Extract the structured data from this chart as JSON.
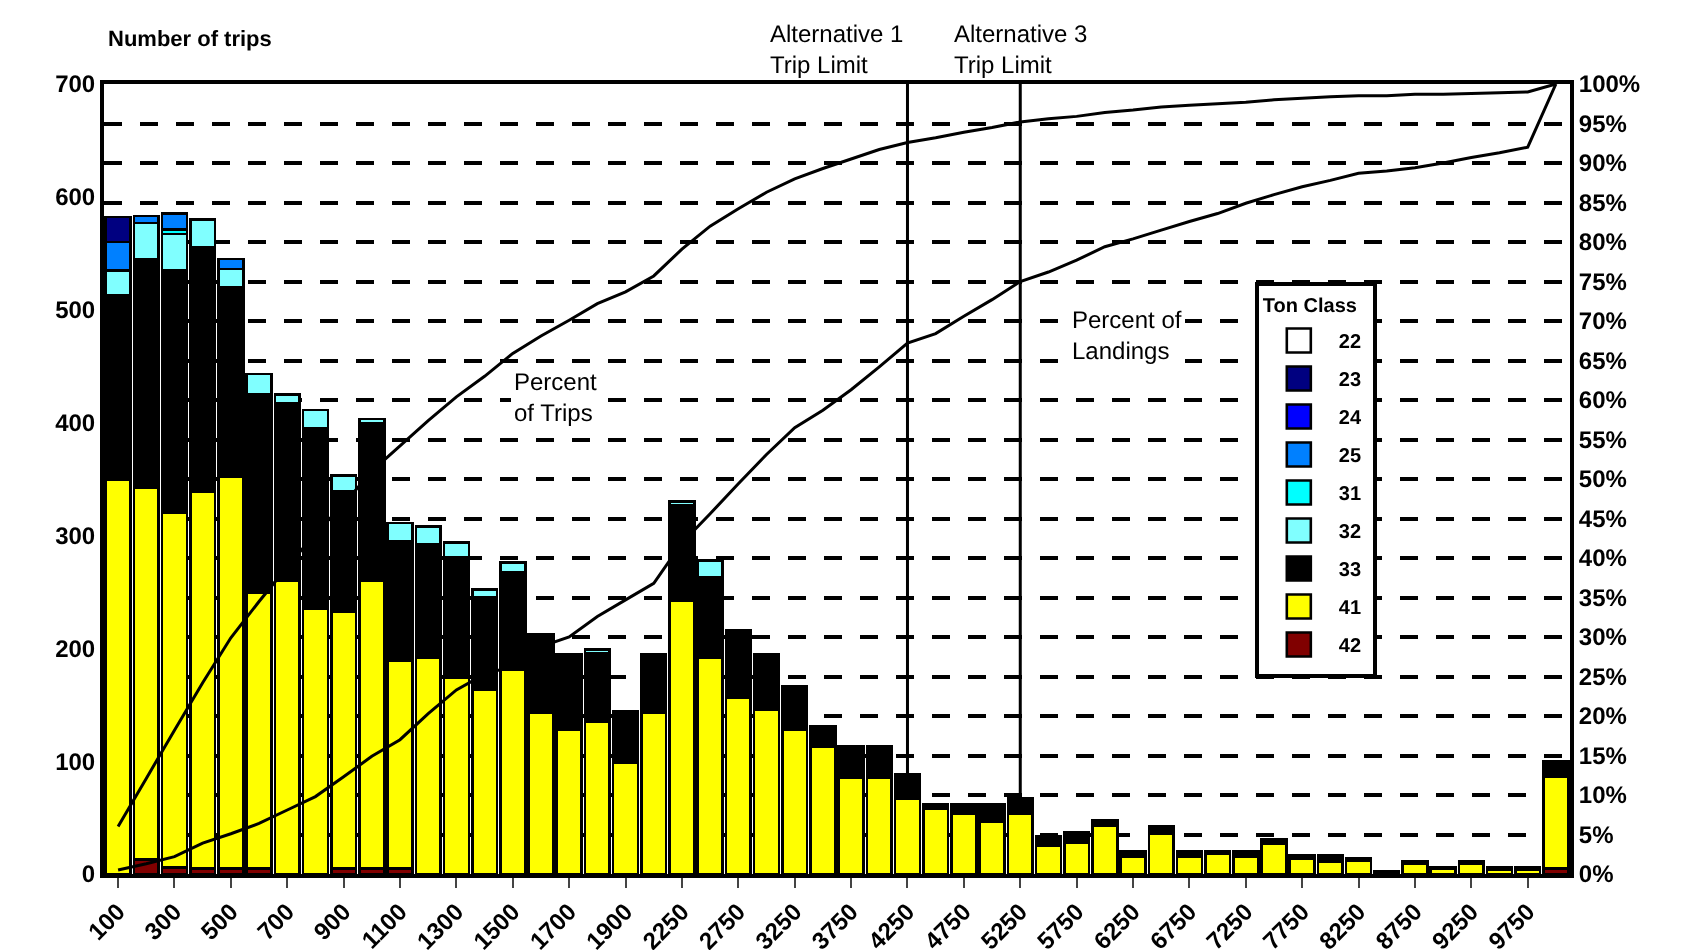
{
  "chart_data": {
    "type": "bar",
    "stacked": true,
    "ylabel": "Number of trips",
    "legend_title": "Ton Class",
    "legend": "right",
    "grid": true,
    "categories": [
      "100",
      null,
      "300",
      null,
      "500",
      null,
      "700",
      null,
      "900",
      null,
      "1100",
      null,
      "1300",
      null,
      "1500",
      null,
      "1700",
      null,
      "1900",
      null,
      "2250",
      null,
      "2750",
      null,
      "3250",
      null,
      "3750",
      null,
      "4250",
      null,
      "4750",
      null,
      "5250",
      null,
      "5750",
      null,
      "6250",
      null,
      "6750",
      null,
      "7250",
      null,
      "7750",
      null,
      "8250",
      null,
      "8750",
      null,
      "9250",
      null,
      "9750",
      null
    ],
    "series": [
      {
        "name": "42",
        "color": "#800000",
        "values": [
          0,
          13,
          6,
          5,
          5,
          5,
          0,
          0,
          5,
          5,
          5,
          0,
          0,
          0,
          0,
          0,
          0,
          0,
          0,
          0,
          0,
          0,
          0,
          0,
          0,
          0,
          0,
          0,
          0,
          0,
          0,
          0,
          0,
          0,
          0,
          0,
          0,
          0,
          0,
          0,
          0,
          0,
          0,
          0,
          0,
          0,
          0,
          0,
          0,
          0,
          0,
          5
        ]
      },
      {
        "name": "41",
        "color": "#ffff00",
        "values": [
          349,
          329,
          314,
          334,
          347,
          244,
          260,
          235,
          227,
          255,
          184,
          192,
          174,
          163,
          181,
          143,
          128,
          135,
          99,
          143,
          242,
          192,
          156,
          146,
          128,
          113,
          85,
          85,
          67,
          58,
          53,
          46,
          53,
          25,
          28,
          43,
          15,
          36,
          15,
          18,
          15,
          27,
          14,
          11,
          12,
          0,
          9,
          5,
          9,
          4,
          4,
          81
        ]
      },
      {
        "name": "33",
        "color": "#000000",
        "values": [
          164,
          203,
          215,
          216,
          168,
          176,
          157,
          160,
          107,
          139,
          106,
          100,
          107,
          82,
          86,
          69,
          67,
          61,
          45,
          52,
          85,
          71,
          60,
          49,
          38,
          18,
          28,
          28,
          21,
          4,
          9,
          16,
          14,
          8,
          9,
          5,
          5,
          6,
          5,
          2,
          5,
          4,
          3,
          6,
          2,
          2,
          2,
          1,
          2,
          2,
          2,
          14
        ]
      },
      {
        "name": "32",
        "color": "#80ffff",
        "values": [
          22,
          32,
          32,
          25,
          16,
          18,
          8,
          16,
          14,
          4,
          16,
          16,
          13,
          7,
          9,
          0,
          0,
          3,
          0,
          0,
          3,
          15,
          0,
          0,
          0,
          0,
          0,
          0,
          0,
          0,
          0,
          0,
          0,
          0,
          0,
          0,
          0,
          0,
          0,
          0,
          0,
          0,
          0,
          0,
          0,
          0,
          0,
          0,
          0,
          0,
          0,
          0
        ]
      },
      {
        "name": "31",
        "color": "#00ffff",
        "values": [
          0,
          0,
          4,
          0,
          0,
          0,
          0,
          0,
          0,
          0,
          0,
          0,
          0,
          0,
          0,
          0,
          0,
          0,
          0,
          0,
          0,
          0,
          0,
          0,
          0,
          0,
          0,
          0,
          0,
          0,
          0,
          0,
          0,
          0,
          0,
          0,
          0,
          0,
          0,
          0,
          0,
          0,
          0,
          0,
          0,
          0,
          0,
          0,
          0,
          0,
          0,
          0
        ]
      },
      {
        "name": "25",
        "color": "#0080ff",
        "values": [
          25,
          6,
          14,
          0,
          9,
          0,
          0,
          0,
          0,
          0,
          0,
          0,
          0,
          0,
          0,
          0,
          0,
          0,
          0,
          0,
          0,
          0,
          0,
          0,
          0,
          0,
          0,
          0,
          0,
          0,
          0,
          0,
          0,
          0,
          0,
          0,
          0,
          0,
          0,
          0,
          0,
          0,
          0,
          0,
          0,
          0,
          0,
          0,
          0,
          0,
          0,
          0
        ]
      },
      {
        "name": "24",
        "color": "#0000ff",
        "values": [
          0,
          0,
          0,
          0,
          0,
          0,
          0,
          0,
          0,
          0,
          0,
          0,
          0,
          0,
          0,
          0,
          0,
          0,
          0,
          0,
          0,
          0,
          0,
          0,
          0,
          0,
          0,
          0,
          0,
          0,
          0,
          0,
          0,
          0,
          0,
          0,
          0,
          0,
          0,
          0,
          0,
          0,
          0,
          0,
          0,
          0,
          0,
          0,
          0,
          0,
          0,
          0
        ]
      },
      {
        "name": "23",
        "color": "#000080",
        "values": [
          22,
          0,
          0,
          0,
          0,
          0,
          0,
          0,
          0,
          0,
          0,
          0,
          0,
          0,
          0,
          0,
          0,
          0,
          0,
          0,
          0,
          0,
          0,
          0,
          0,
          0,
          0,
          0,
          0,
          0,
          0,
          0,
          0,
          0,
          0,
          0,
          0,
          0,
          0,
          0,
          0,
          0,
          0,
          0,
          0,
          0,
          0,
          0,
          0,
          0,
          0,
          0
        ]
      },
      {
        "name": "22",
        "color": "#ffffff",
        "values": [
          0,
          0,
          0,
          0,
          0,
          0,
          0,
          0,
          0,
          0,
          0,
          0,
          0,
          0,
          0,
          0,
          0,
          0,
          0,
          0,
          0,
          0,
          0,
          0,
          0,
          0,
          0,
          0,
          0,
          0,
          0,
          0,
          0,
          0,
          0,
          0,
          0,
          0,
          0,
          0,
          0,
          0,
          0,
          0,
          0,
          0,
          0,
          0,
          0,
          0,
          0,
          0
        ]
      },
      {
        "type": "line",
        "axis": "y2",
        "color": "#000000",
        "values": [
          6.0,
          12.1,
          18.2,
          24.2,
          29.9,
          34.5,
          38.9,
          43.1,
          46.8,
          51.0,
          54.2,
          57.4,
          60.4,
          63.0,
          65.9,
          68.1,
          70.1,
          72.2,
          73.7,
          75.7,
          79.1,
          82.0,
          84.2,
          86.3,
          88.0,
          89.3,
          90.5,
          91.7,
          92.6,
          93.2,
          93.9,
          94.5,
          95.2,
          95.6,
          95.9,
          96.4,
          96.7,
          97.1,
          97.3,
          97.5,
          97.7,
          98.0,
          98.2,
          98.4,
          98.5,
          98.5,
          98.7,
          98.7,
          98.8,
          98.9,
          99.0,
          100
        ]
      },
      {
        "type": "line",
        "axis": "y2",
        "color": "#000000",
        "values": [
          0.5,
          1.3,
          2.2,
          3.9,
          5.1,
          6.4,
          8.1,
          9.8,
          12.3,
          14.9,
          17.0,
          20.3,
          23.3,
          25.3,
          26.3,
          28.8,
          30.0,
          32.6,
          34.7,
          36.8,
          41.9,
          45.6,
          49.4,
          53.1,
          56.5,
          58.7,
          61.3,
          64.2,
          67.2,
          68.4,
          70.6,
          72.7,
          75.0,
          76.2,
          77.7,
          79.4,
          80.4,
          81.5,
          82.6,
          83.6,
          84.9,
          86.0,
          87.0,
          87.8,
          88.7,
          89.0,
          89.4,
          90.0,
          90.7,
          91.3,
          92.0,
          100
        ]
      }
    ],
    "ylim": [
      0,
      700
    ],
    "yticks": [
      0,
      100,
      200,
      300,
      400,
      500,
      600,
      700
    ],
    "y2lim": [
      0,
      100
    ],
    "y2ticks": [
      {
        "value": 0,
        "label": "0%"
      },
      {
        "value": 5,
        "label": "5%"
      },
      {
        "value": 10,
        "label": "10%"
      },
      {
        "value": 15,
        "label": "15%"
      },
      {
        "value": 20,
        "label": "20%"
      },
      {
        "value": 25,
        "label": "25%"
      },
      {
        "value": 30,
        "label": "30%"
      },
      {
        "value": 35,
        "label": "35%"
      },
      {
        "value": 40,
        "label": "40%"
      },
      {
        "value": 45,
        "label": "45%"
      },
      {
        "value": 50,
        "label": "50%"
      },
      {
        "value": 55,
        "label": "55%"
      },
      {
        "value": 60,
        "label": "60%"
      },
      {
        "value": 65,
        "label": "65%"
      },
      {
        "value": 70,
        "label": "70%"
      },
      {
        "value": 75,
        "label": "75%"
      },
      {
        "value": 80,
        "label": "80%"
      },
      {
        "value": 85,
        "label": "85%"
      },
      {
        "value": 90,
        "label": "90%"
      },
      {
        "value": 95,
        "label": "95%"
      },
      {
        "value": 100,
        "label": "100%"
      }
    ],
    "ref_lines": [
      {
        "axis": "x",
        "value": "4250",
        "label": "Alternative 1\nTrip Limit"
      },
      {
        "axis": "x",
        "value": "5250",
        "label": "Alternative 3\nTrip Limit"
      }
    ],
    "annotations": [
      "Percent\nof Trips",
      "Percent of\nLandings"
    ]
  }
}
